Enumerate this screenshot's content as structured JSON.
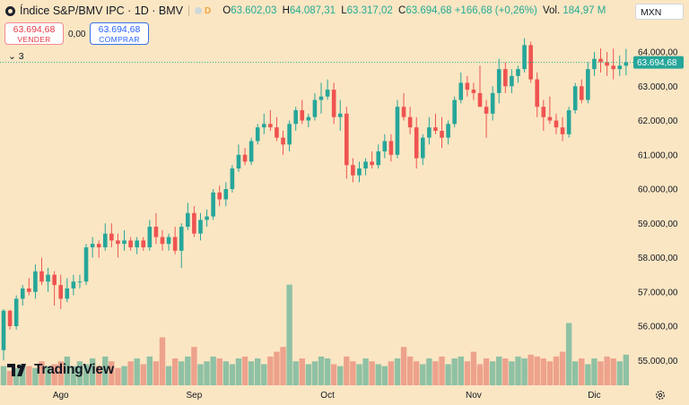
{
  "header": {
    "title": "Índice S&P/BMV IPC · 1D · BMV",
    "indicator_flag": "D",
    "ohlc": [
      {
        "key": "O",
        "value": "63.602,03"
      },
      {
        "key": "H",
        "value": "64.087,31"
      },
      {
        "key": "L",
        "value": "63.317,02"
      },
      {
        "key": "C",
        "value": "63.694,68"
      }
    ],
    "change": "+166,68 (+0,26%)",
    "volume_label": "Vol.",
    "volume_value": "184,97 M",
    "currency": "MXN"
  },
  "trade": {
    "sell_price": "63.694,68",
    "sell_label": "VENDER",
    "spread": "0,00",
    "buy_price": "63.694,68",
    "buy_label": "COMPRAR"
  },
  "studies": {
    "count": "3"
  },
  "branding": {
    "logo_text": "TradingView"
  },
  "colors": {
    "background": "#fbe6c3",
    "up": "#26a69a",
    "down": "#ef5350",
    "volume_up": "#8fc1a4",
    "volume_down": "#eda28c",
    "last_price": "#26a69a"
  },
  "chart_data": {
    "type": "candlestick",
    "title": "Índice S&P/BMV IPC · 1D · BMV",
    "ylim": [
      54500,
      64500
    ],
    "y_ticks": [
      {
        "value": 55000,
        "label": "55.000,00"
      },
      {
        "value": 56000,
        "label": "56.000,00"
      },
      {
        "value": 57000,
        "label": "57.000,00"
      },
      {
        "value": 58000,
        "label": "58.000,00"
      },
      {
        "value": 59000,
        "label": "59.000,00"
      },
      {
        "value": 60000,
        "label": "60.000,00"
      },
      {
        "value": 61000,
        "label": "61.000,00"
      },
      {
        "value": 62000,
        "label": "62.000,00"
      },
      {
        "value": 63000,
        "label": "63.000,00"
      },
      {
        "value": 64000,
        "label": "64.000,00"
      }
    ],
    "x_ticks": [
      {
        "index": 9,
        "label": "Ago"
      },
      {
        "index": 30,
        "label": "Sep"
      },
      {
        "index": 51,
        "label": "Oct"
      },
      {
        "index": 74,
        "label": "Nov"
      },
      {
        "index": 93,
        "label": "Dic"
      }
    ],
    "last_price": {
      "value": 63694.68,
      "label": "63.694,68"
    },
    "candles": [
      [
        55300,
        56500,
        55000,
        56450
      ],
      [
        56450,
        56480,
        55900,
        56000
      ],
      [
        56000,
        56900,
        55900,
        56800
      ],
      [
        56800,
        57200,
        56600,
        57100
      ],
      [
        57100,
        57400,
        56900,
        57000
      ],
      [
        57000,
        57800,
        56800,
        57600
      ],
      [
        57600,
        58000,
        57200,
        57300
      ],
      [
        57300,
        57700,
        57000,
        57500
      ],
      [
        57500,
        57600,
        56600,
        57200
      ],
      [
        57200,
        57500,
        56500,
        56800
      ],
      [
        56800,
        57400,
        56700,
        57100
      ],
      [
        57100,
        57500,
        56900,
        57300
      ],
      [
        57300,
        57500,
        57100,
        57300
      ],
      [
        57300,
        58400,
        57200,
        58300
      ],
      [
        58300,
        58600,
        58000,
        58400
      ],
      [
        58400,
        58500,
        58000,
        58300
      ],
      [
        58300,
        59000,
        58200,
        58700
      ],
      [
        58700,
        59000,
        58300,
        58500
      ],
      [
        58500,
        58700,
        58000,
        58400
      ],
      [
        58400,
        58800,
        58200,
        58500
      ],
      [
        58500,
        58600,
        58200,
        58300
      ],
      [
        58300,
        58600,
        58100,
        58500
      ],
      [
        58500,
        58600,
        58200,
        58300
      ],
      [
        58300,
        59100,
        58200,
        58900
      ],
      [
        58900,
        59300,
        58400,
        58600
      ],
      [
        58600,
        58800,
        58200,
        58400
      ],
      [
        58400,
        58700,
        58200,
        58600
      ],
      [
        58600,
        58900,
        58100,
        58200
      ],
      [
        58200,
        59000,
        57700,
        58900
      ],
      [
        58900,
        59600,
        58800,
        59300
      ],
      [
        59300,
        59500,
        58600,
        58700
      ],
      [
        58700,
        59300,
        58500,
        59100
      ],
      [
        59100,
        59400,
        58900,
        59200
      ],
      [
        59200,
        60000,
        59100,
        59900
      ],
      [
        59900,
        60100,
        59500,
        59700
      ],
      [
        59700,
        60200,
        59500,
        60000
      ],
      [
        60000,
        60700,
        59900,
        60600
      ],
      [
        60600,
        61300,
        60500,
        61000
      ],
      [
        61000,
        61200,
        60700,
        60800
      ],
      [
        60800,
        61500,
        60700,
        61400
      ],
      [
        61400,
        61900,
        61300,
        61800
      ],
      [
        61800,
        62200,
        61600,
        61900
      ],
      [
        61900,
        62300,
        61700,
        61800
      ],
      [
        61800,
        62100,
        61400,
        61500
      ],
      [
        61500,
        61700,
        61000,
        61300
      ],
      [
        61300,
        62000,
        61100,
        61900
      ],
      [
        61900,
        62400,
        61700,
        62300
      ],
      [
        62300,
        62600,
        61900,
        62000
      ],
      [
        62000,
        62200,
        61800,
        62100
      ],
      [
        62100,
        62800,
        62000,
        62600
      ],
      [
        62600,
        63100,
        62200,
        62700
      ],
      [
        62700,
        63200,
        62600,
        62900
      ],
      [
        62900,
        63100,
        61900,
        62100
      ],
      [
        62100,
        62600,
        61700,
        62200
      ],
      [
        62200,
        62400,
        60300,
        60700
      ],
      [
        60700,
        60900,
        60200,
        60400
      ],
      [
        60400,
        60800,
        60200,
        60600
      ],
      [
        60600,
        60900,
        60400,
        60800
      ],
      [
        60800,
        61100,
        60600,
        60700
      ],
      [
        60700,
        61300,
        60600,
        61100
      ],
      [
        61100,
        61600,
        60900,
        61400
      ],
      [
        61400,
        61600,
        60800,
        61000
      ],
      [
        61000,
        62600,
        60900,
        62400
      ],
      [
        62400,
        62800,
        62000,
        62100
      ],
      [
        62100,
        62400,
        61600,
        61800
      ],
      [
        61800,
        62100,
        60600,
        60900
      ],
      [
        60900,
        61600,
        60700,
        61500
      ],
      [
        61500,
        62100,
        61300,
        61800
      ],
      [
        61800,
        62200,
        61600,
        61700
      ],
      [
        61700,
        62100,
        61200,
        61500
      ],
      [
        61500,
        62000,
        61300,
        61900
      ],
      [
        61900,
        62700,
        61800,
        62600
      ],
      [
        62600,
        63400,
        62500,
        63100
      ],
      [
        63100,
        63300,
        62700,
        62900
      ],
      [
        62900,
        63100,
        62600,
        62800
      ],
      [
        62800,
        63600,
        62400,
        62400
      ],
      [
        62400,
        62600,
        61500,
        62200
      ],
      [
        62200,
        63000,
        62000,
        62800
      ],
      [
        62800,
        63800,
        62500,
        63500
      ],
      [
        63500,
        63700,
        62800,
        63000
      ],
      [
        63000,
        63500,
        62800,
        63300
      ],
      [
        63300,
        63600,
        63100,
        63500
      ],
      [
        63500,
        64400,
        63400,
        64200
      ],
      [
        64200,
        64300,
        63100,
        63200
      ],
      [
        63200,
        63400,
        62100,
        62400
      ],
      [
        62400,
        62600,
        61700,
        62100
      ],
      [
        62100,
        62700,
        61900,
        62000
      ],
      [
        62000,
        62200,
        61600,
        61800
      ],
      [
        61800,
        62100,
        61400,
        61600
      ],
      [
        61600,
        62400,
        61500,
        62300
      ],
      [
        62300,
        63100,
        62200,
        63000
      ],
      [
        63000,
        63200,
        62500,
        62600
      ],
      [
        62600,
        63700,
        62500,
        63500
      ],
      [
        63500,
        64000,
        63300,
        63800
      ],
      [
        63800,
        64100,
        63400,
        63700
      ],
      [
        63700,
        64000,
        63300,
        63600
      ],
      [
        63600,
        64100,
        63200,
        63500
      ],
      [
        63500,
        63900,
        63300,
        63600
      ],
      [
        63600,
        64087,
        63317,
        63695
      ]
    ],
    "volume_relative": [
      0.2,
      0.15,
      0.18,
      0.22,
      0.2,
      0.18,
      0.25,
      0.2,
      0.22,
      0.25,
      0.3,
      0.2,
      0.25,
      0.22,
      0.28,
      0.2,
      0.3,
      0.25,
      0.18,
      0.2,
      0.25,
      0.28,
      0.22,
      0.3,
      0.25,
      0.5,
      0.2,
      0.28,
      0.25,
      0.3,
      0.4,
      0.22,
      0.25,
      0.3,
      0.28,
      0.25,
      0.22,
      0.28,
      0.3,
      0.25,
      0.28,
      0.22,
      0.3,
      0.35,
      0.4,
      1.05,
      0.25,
      0.28,
      0.22,
      0.25,
      0.3,
      0.28,
      0.22,
      0.2,
      0.3,
      0.25,
      0.22,
      0.28,
      0.25,
      0.22,
      0.2,
      0.25,
      0.28,
      0.4,
      0.3,
      0.25,
      0.22,
      0.28,
      0.25,
      0.3,
      0.22,
      0.28,
      0.3,
      0.25,
      0.35,
      0.22,
      0.28,
      0.25,
      0.3,
      0.28,
      0.25,
      0.3,
      0.28,
      0.32,
      0.3,
      0.28,
      0.25,
      0.3,
      0.35,
      0.65,
      0.25,
      0.28,
      0.22,
      0.28,
      0.25,
      0.3,
      0.28,
      0.25,
      0.32
    ]
  }
}
